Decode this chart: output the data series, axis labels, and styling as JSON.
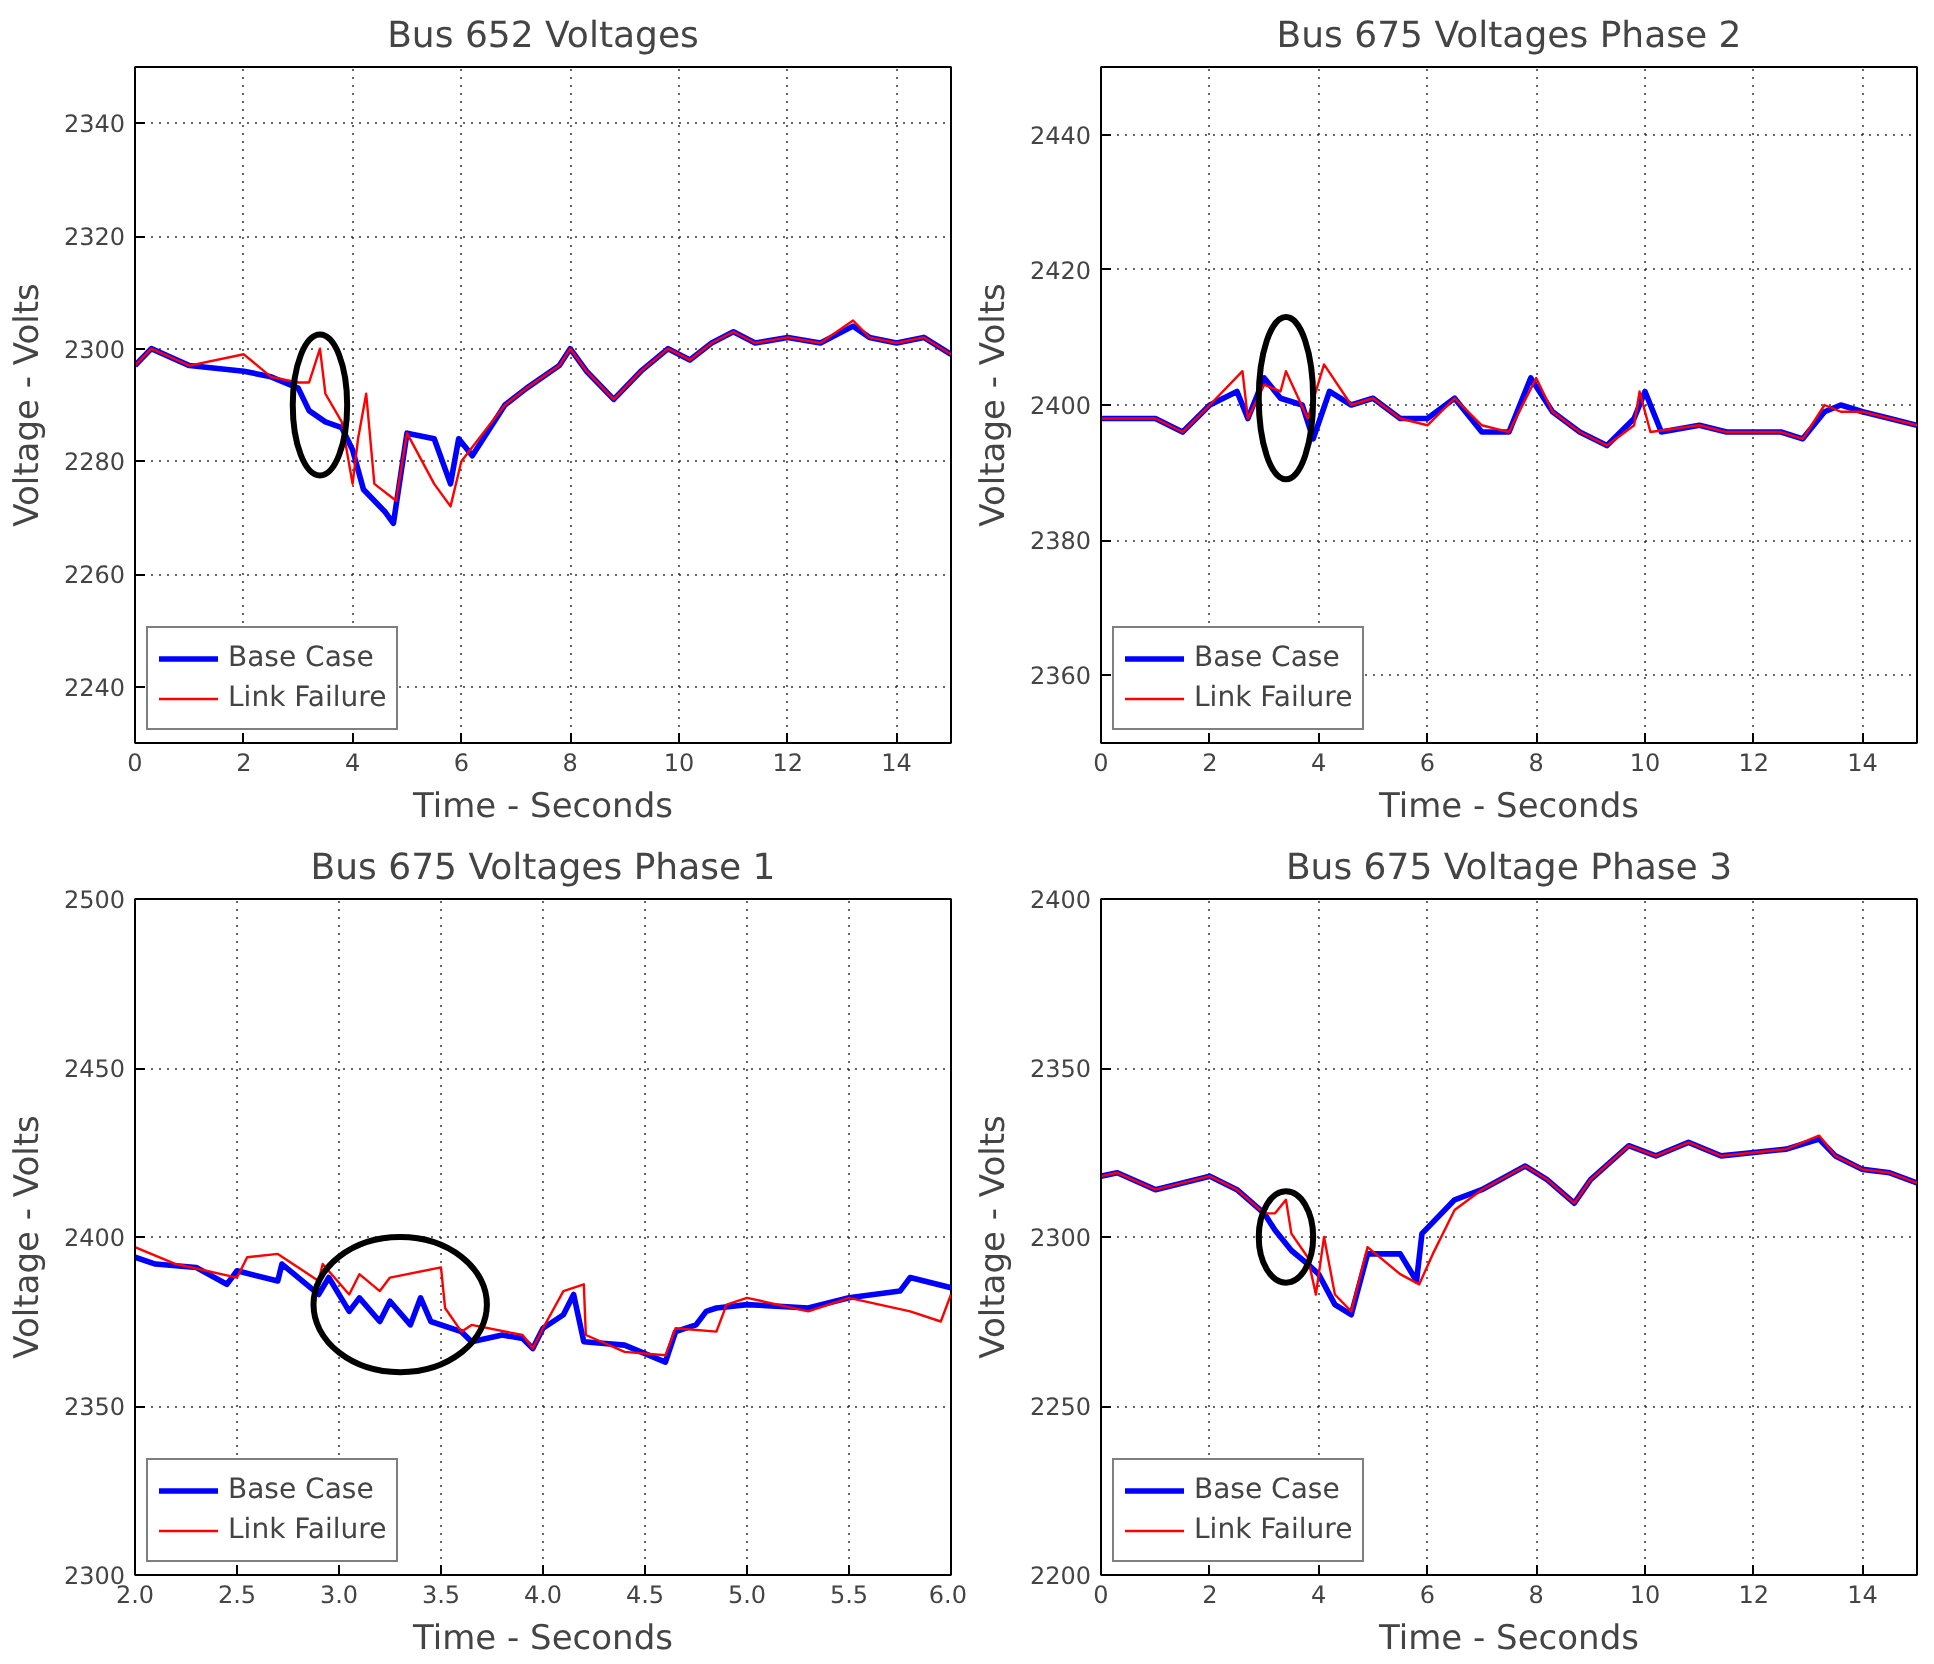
{
  "chart_data": [
    {
      "type": "line",
      "title": "Bus 652 Voltages",
      "xlabel": "Time - Seconds",
      "ylabel": "Voltage - Volts",
      "xlim": [
        0,
        15
      ],
      "xticks": [
        0,
        2,
        4,
        6,
        8,
        10,
        12,
        14
      ],
      "ylim": [
        2230,
        2350
      ],
      "yticks": [
        2240,
        2260,
        2280,
        2300,
        2320,
        2340
      ],
      "grid": true,
      "legend": "bottom left",
      "series": [
        {
          "name": "Base Case",
          "color": "#0000ff",
          "x": [
            0,
            0.3,
            1,
            2,
            2.5,
            3,
            3.2,
            3.5,
            3.8,
            4,
            4.2,
            4.6,
            4.75,
            5,
            5.5,
            5.8,
            5.95,
            6.2,
            6.8,
            7.2,
            7.8,
            8,
            8.3,
            8.8,
            9.3,
            9.8,
            10.2,
            10.6,
            11,
            11.4,
            12,
            12.6,
            13.2,
            13.5,
            14,
            14.5,
            15
          ],
          "values": [
            2297,
            2300,
            2297,
            2296,
            2295,
            2293,
            2289,
            2287,
            2286,
            2282,
            2275,
            2271,
            2269,
            2285,
            2284,
            2276,
            2284,
            2281,
            2290,
            2293,
            2297,
            2300,
            2296,
            2291,
            2296,
            2300,
            2298,
            2301,
            2303,
            2301,
            2302,
            2301,
            2304,
            2302,
            2301,
            2302,
            2299
          ]
        },
        {
          "name": "Link Failure",
          "color": "#ff0000",
          "x": [
            0,
            0.3,
            1,
            2,
            2.5,
            3,
            3.2,
            3.3,
            3.4,
            3.5,
            3.8,
            4,
            4.1,
            4.25,
            4.4,
            4.8,
            5,
            5.5,
            5.8,
            6,
            6.8,
            7.2,
            7.8,
            8,
            8.3,
            8.8,
            9.3,
            9.8,
            10.2,
            10.6,
            11,
            11.4,
            12,
            12.6,
            13.2,
            13.5,
            14,
            14.5,
            15
          ],
          "values": [
            2297,
            2300,
            2297,
            2299,
            2295,
            2294,
            2294,
            2297,
            2300,
            2292,
            2287,
            2276,
            2284,
            2292,
            2276,
            2273,
            2285,
            2276,
            2272,
            2280,
            2290,
            2293,
            2297,
            2300,
            2296,
            2291,
            2296,
            2300,
            2298,
            2301,
            2303,
            2301,
            2302,
            2301,
            2305,
            2302,
            2301,
            2302,
            2299
          ]
        }
      ]
    },
    {
      "type": "line",
      "title": "Bus 675 Voltages Phase 2",
      "xlabel": "Time - Seconds",
      "ylabel": "Voltage - Volts",
      "xlim": [
        0,
        15
      ],
      "xticks": [
        0,
        2,
        4,
        6,
        8,
        10,
        12,
        14
      ],
      "ylim": [
        2350,
        2450
      ],
      "yticks": [
        2360,
        2380,
        2400,
        2420,
        2440
      ],
      "grid": true,
      "legend": "bottom left",
      "series": [
        {
          "name": "Base Case",
          "color": "#0000ff",
          "x": [
            0,
            1,
            1.5,
            2,
            2.5,
            2.7,
            3,
            3.3,
            3.7,
            3.9,
            4.2,
            4.6,
            5,
            5.5,
            6,
            6.5,
            7,
            7.5,
            7.9,
            8.3,
            8.8,
            9.3,
            9.8,
            10,
            10.3,
            11,
            11.5,
            12,
            12.5,
            12.9,
            13.3,
            13.6,
            14,
            14.5,
            15
          ],
          "values": [
            2398,
            2398,
            2396,
            2400,
            2402,
            2398,
            2404,
            2401,
            2400,
            2395,
            2402,
            2400,
            2401,
            2398,
            2398,
            2401,
            2396,
            2396,
            2404,
            2399,
            2396,
            2394,
            2398,
            2402,
            2396,
            2397,
            2396,
            2396,
            2396,
            2395,
            2399,
            2400,
            2399,
            2398,
            2397
          ]
        },
        {
          "name": "Link Failure",
          "color": "#ff0000",
          "x": [
            0,
            1,
            1.5,
            2,
            2.6,
            2.7,
            3,
            3.3,
            3.4,
            3.8,
            4.1,
            4.6,
            5,
            5.5,
            6,
            6.5,
            7,
            7.5,
            8,
            8.3,
            8.8,
            9.3,
            9.8,
            9.9,
            10.1,
            11,
            11.5,
            12,
            12.5,
            12.9,
            13.3,
            13.6,
            14,
            14.5,
            15
          ],
          "values": [
            2398,
            2398,
            2396,
            2400,
            2405,
            2398,
            2403,
            2402,
            2405,
            2398,
            2406,
            2400,
            2401,
            2398,
            2397,
            2401,
            2397,
            2396,
            2404,
            2399,
            2396,
            2394,
            2397,
            2402,
            2396,
            2397,
            2396,
            2396,
            2396,
            2395,
            2400,
            2399,
            2399,
            2398,
            2397
          ]
        }
      ]
    },
    {
      "type": "line",
      "title": "Bus 675 Voltages Phase 1",
      "xlabel": "Time - Seconds",
      "ylabel": "Voltage - Volts",
      "xlim": [
        2,
        6
      ],
      "xticks": [
        {
          "value": 2,
          "label": "2.0"
        },
        2.5,
        {
          "value": 3,
          "label": "3.0"
        },
        3.5,
        {
          "value": 4,
          "label": "4.0"
        },
        4.5,
        {
          "value": 5,
          "label": "5.0"
        },
        5.5,
        {
          "value": 6,
          "label": "6.0"
        }
      ],
      "ylim": [
        2300,
        2500
      ],
      "yticks": [
        2300,
        2350,
        2400,
        2450,
        2500
      ],
      "grid": true,
      "legend": "bottom left",
      "series": [
        {
          "name": "Base Case",
          "color": "#0000ff",
          "x": [
            2,
            2.1,
            2.3,
            2.45,
            2.5,
            2.7,
            2.72,
            2.9,
            2.95,
            3.05,
            3.1,
            3.2,
            3.25,
            3.35,
            3.4,
            3.45,
            3.6,
            3.65,
            3.8,
            3.9,
            3.95,
            4,
            4.1,
            4.15,
            4.2,
            4.4,
            4.6,
            4.65,
            4.75,
            4.8,
            4.85,
            5,
            5.3,
            5.5,
            5.75,
            5.8,
            6
          ],
          "values": [
            2394,
            2392,
            2391,
            2386,
            2390,
            2387,
            2392,
            2383,
            2388,
            2378,
            2382,
            2375,
            2381,
            2374,
            2382,
            2375,
            2372,
            2369,
            2371,
            2370,
            2367,
            2373,
            2377,
            2383,
            2369,
            2368,
            2363,
            2372,
            2374,
            2378,
            2379,
            2380,
            2379,
            2382,
            2384,
            2388,
            2385
          ]
        },
        {
          "name": "Link Failure",
          "color": "#ff0000",
          "x": [
            2,
            2.2,
            2.5,
            2.55,
            2.7,
            2.9,
            2.92,
            3.05,
            3.1,
            3.2,
            3.25,
            3.5,
            3.52,
            3.6,
            3.65,
            3.9,
            3.95,
            4,
            4.1,
            4.2,
            4.21,
            4.4,
            4.6,
            4.65,
            4.85,
            4.9,
            5,
            5.3,
            5.5,
            5.8,
            5.95,
            6
          ],
          "values": [
            2397,
            2392,
            2388,
            2394,
            2395,
            2387,
            2392,
            2383,
            2389,
            2384,
            2388,
            2391,
            2379,
            2372,
            2374,
            2371,
            2367,
            2373,
            2384,
            2386,
            2371,
            2366,
            2365,
            2373,
            2372,
            2380,
            2382,
            2378,
            2382,
            2378,
            2375,
            2383
          ]
        }
      ]
    },
    {
      "type": "line",
      "title": "Bus 675 Voltage Phase 3",
      "xlabel": "Time - Seconds",
      "ylabel": "Voltage - Volts",
      "xlim": [
        0,
        15
      ],
      "xticks": [
        0,
        2,
        4,
        6,
        8,
        10,
        12,
        14
      ],
      "ylim": [
        2200,
        2400
      ],
      "yticks": [
        2200,
        2250,
        2300,
        2350,
        2400
      ],
      "grid": true,
      "legend": "bottom left",
      "series": [
        {
          "name": "Base Case",
          "color": "#0000ff",
          "x": [
            0,
            0.3,
            1,
            2,
            2.5,
            3,
            3.2,
            3.5,
            3.8,
            4,
            4.3,
            4.6,
            4.9,
            5.5,
            5.8,
            5.9,
            6.5,
            7,
            7.8,
            8.2,
            8.7,
            9,
            9.7,
            10.2,
            10.8,
            11.4,
            12,
            12.6,
            13.2,
            13.5,
            14,
            14.5,
            15
          ],
          "values": [
            2318,
            2319,
            2314,
            2318,
            2314,
            2307,
            2302,
            2296,
            2292,
            2289,
            2280,
            2277,
            2295,
            2295,
            2287,
            2301,
            2311,
            2314,
            2321,
            2317,
            2310,
            2317,
            2327,
            2324,
            2328,
            2324,
            2325,
            2326,
            2329,
            2324,
            2320,
            2319,
            2316
          ]
        },
        {
          "name": "Link Failure",
          "color": "#ff0000",
          "x": [
            0,
            0.3,
            1,
            2,
            2.5,
            3,
            3.2,
            3.4,
            3.5,
            3.8,
            3.95,
            4.1,
            4.3,
            4.6,
            4.9,
            5.5,
            5.85,
            6.1,
            6.5,
            7,
            7.8,
            8.2,
            8.7,
            9,
            9.7,
            10.2,
            10.8,
            11.4,
            12,
            12.6,
            13.2,
            13.5,
            14,
            14.5,
            15
          ],
          "values": [
            2318,
            2319,
            2314,
            2318,
            2314,
            2307,
            2307,
            2311,
            2301,
            2294,
            2283,
            2300,
            2283,
            2278,
            2297,
            2289,
            2286,
            2295,
            2308,
            2314,
            2321,
            2317,
            2310,
            2317,
            2327,
            2324,
            2328,
            2324,
            2325,
            2326,
            2330,
            2324,
            2320,
            2319,
            2316
          ]
        }
      ]
    }
  ]
}
